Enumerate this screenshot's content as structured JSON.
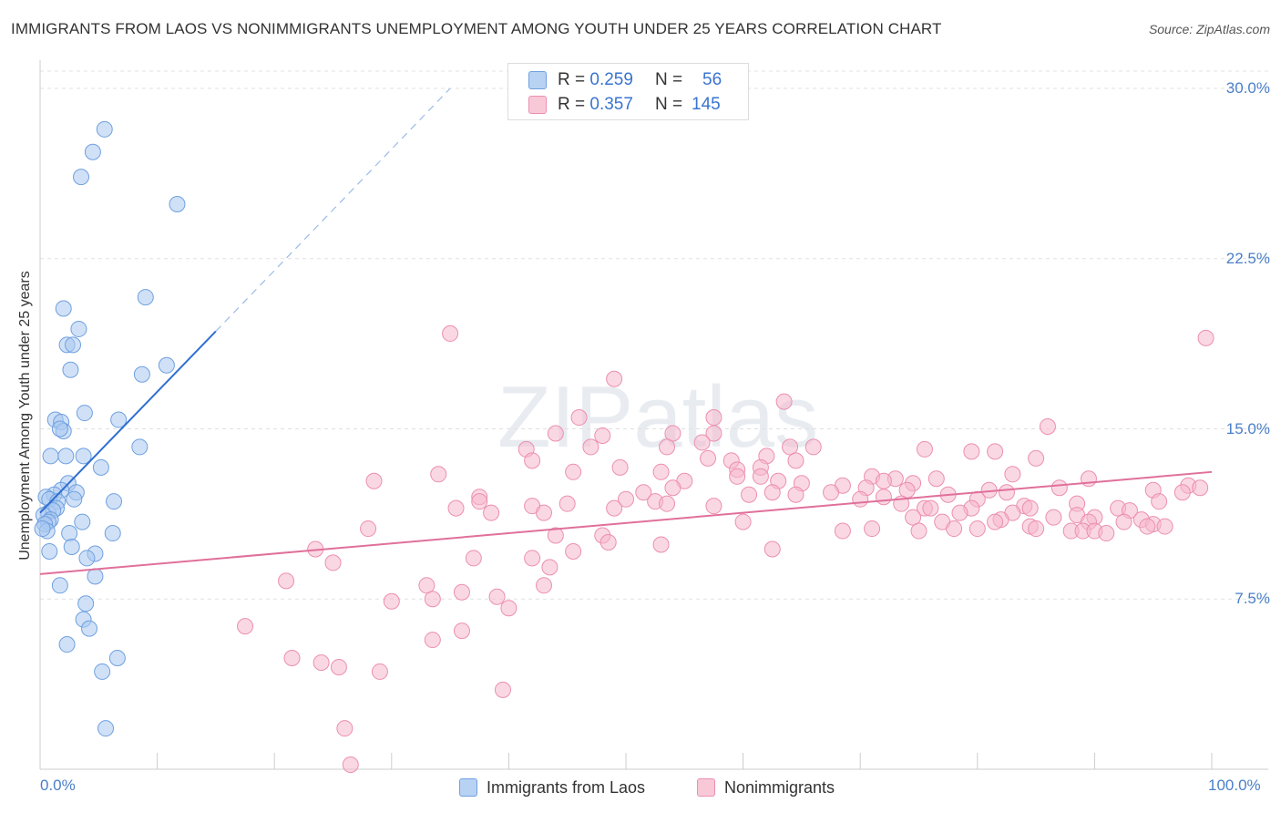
{
  "title": "IMMIGRANTS FROM LAOS VS NONIMMIGRANTS UNEMPLOYMENT AMONG YOUTH UNDER 25 YEARS CORRELATION CHART",
  "source": "Source: ZipAtlas.com",
  "watermark": "ZIPatlas",
  "colors": {
    "blue": "#a9c8f0",
    "blue_stroke": "#6fa0e0",
    "blue_line": "#2f6fd0",
    "pink": "#f5b8cc",
    "pink_stroke": "#ec8fb0",
    "pink_line": "#e0709a",
    "tick_text": "#4a7fc9",
    "grid": "#e0e0e0"
  },
  "legend_top": [
    {
      "r_label": "R =",
      "r_value": "0.259",
      "n_label": "N =",
      "n_value": "56"
    },
    {
      "r_label": "R =",
      "r_value": "0.357",
      "n_label": "N =",
      "n_value": "145"
    }
  ],
  "chart_data": {
    "type": "scatter",
    "title": "IMMIGRANTS FROM LAOS VS NONIMMIGRANTS UNEMPLOYMENT AMONG YOUTH UNDER 25 YEARS CORRELATION CHART",
    "xlabel": "",
    "ylabel": "Unemployment Among Youth under 25 years",
    "xlim": [
      0,
      100
    ],
    "ylim": [
      0,
      30
    ],
    "x_tick_labels": [
      "0.0%",
      "100.0%"
    ],
    "y_ticks": [
      7.5,
      15.0,
      22.5,
      30.0
    ],
    "y_tick_labels": [
      "7.5%",
      "15.0%",
      "22.5%",
      "30.0%"
    ],
    "grid": true,
    "legend_position": "bottom",
    "series": [
      {
        "name": "Immigrants from Laos",
        "r": 0.259,
        "n": 56,
        "trend": {
          "x0": 0,
          "y0": 11.3,
          "x1": 15,
          "y1": 19.3,
          "dashed_to": {
            "x": 35,
            "y": 30
          }
        },
        "points": [
          [
            5.5,
            28.2
          ],
          [
            4.5,
            27.2
          ],
          [
            3.5,
            26.1
          ],
          [
            11.7,
            24.9
          ],
          [
            9,
            20.8
          ],
          [
            2,
            20.3
          ],
          [
            3.3,
            19.4
          ],
          [
            2.3,
            18.7
          ],
          [
            2.8,
            18.7
          ],
          [
            10.8,
            17.8
          ],
          [
            8.7,
            17.4
          ],
          [
            2.6,
            17.6
          ],
          [
            3.8,
            15.7
          ],
          [
            6.7,
            15.4
          ],
          [
            1.3,
            15.4
          ],
          [
            1.8,
            15.3
          ],
          [
            2,
            14.9
          ],
          [
            1.7,
            15
          ],
          [
            8.5,
            14.2
          ],
          [
            2.2,
            13.8
          ],
          [
            0.9,
            13.8
          ],
          [
            3.7,
            13.8
          ],
          [
            5.2,
            13.3
          ],
          [
            2.4,
            12.6
          ],
          [
            1.8,
            12.3
          ],
          [
            1.2,
            12.1
          ],
          [
            3.1,
            12.2
          ],
          [
            2.9,
            11.9
          ],
          [
            0.5,
            12
          ],
          [
            0.8,
            11.9
          ],
          [
            1.5,
            11.8
          ],
          [
            6.3,
            11.8
          ],
          [
            0.7,
            11.3
          ],
          [
            1.4,
            11.5
          ],
          [
            1.1,
            11.4
          ],
          [
            0.3,
            11.2
          ],
          [
            0.9,
            11
          ],
          [
            0.7,
            10.9
          ],
          [
            0.4,
            10.8
          ],
          [
            3.6,
            10.9
          ],
          [
            0.6,
            10.5
          ],
          [
            0.2,
            10.6
          ],
          [
            2.5,
            10.4
          ],
          [
            6.2,
            10.4
          ],
          [
            2.7,
            9.8
          ],
          [
            0.8,
            9.6
          ],
          [
            4.7,
            9.5
          ],
          [
            4,
            9.3
          ],
          [
            4.7,
            8.5
          ],
          [
            1.7,
            8.1
          ],
          [
            3.9,
            7.3
          ],
          [
            3.7,
            6.6
          ],
          [
            4.2,
            6.2
          ],
          [
            2.3,
            5.5
          ],
          [
            6.6,
            4.9
          ],
          [
            5.3,
            4.3
          ],
          [
            5.6,
            1.8
          ]
        ]
      },
      {
        "name": "Nonimmigrants",
        "r": 0.357,
        "n": 145,
        "trend": {
          "x0": 0,
          "y0": 8.6,
          "x1": 100,
          "y1": 13.1
        },
        "points": [
          [
            35,
            19.2
          ],
          [
            99.5,
            19
          ],
          [
            49,
            17.2
          ],
          [
            63.5,
            16.2
          ],
          [
            46,
            15.5
          ],
          [
            57.5,
            15.5
          ],
          [
            86,
            15.1
          ],
          [
            54,
            14.8
          ],
          [
            57.5,
            14.8
          ],
          [
            44,
            14.8
          ],
          [
            48,
            14.7
          ],
          [
            56.5,
            14.4
          ],
          [
            53.5,
            14.2
          ],
          [
            47,
            14.2
          ],
          [
            66,
            14.2
          ],
          [
            64,
            14.2
          ],
          [
            41.5,
            14.1
          ],
          [
            75.5,
            14.1
          ],
          [
            81.5,
            14
          ],
          [
            79.5,
            14
          ],
          [
            85,
            13.7
          ],
          [
            62,
            13.8
          ],
          [
            42,
            13.6
          ],
          [
            57,
            13.7
          ],
          [
            59,
            13.6
          ],
          [
            64.5,
            13.6
          ],
          [
            61.5,
            13.3
          ],
          [
            49.5,
            13.3
          ],
          [
            59.5,
            13.2
          ],
          [
            53,
            13.1
          ],
          [
            45.5,
            13.1
          ],
          [
            83,
            13
          ],
          [
            34,
            13
          ],
          [
            59.5,
            12.9
          ],
          [
            71,
            12.9
          ],
          [
            61.5,
            12.9
          ],
          [
            76.5,
            12.8
          ],
          [
            73,
            12.8
          ],
          [
            89.5,
            12.8
          ],
          [
            28.5,
            12.7
          ],
          [
            55,
            12.7
          ],
          [
            63,
            12.7
          ],
          [
            72,
            12.7
          ],
          [
            74.5,
            12.6
          ],
          [
            65,
            12.6
          ],
          [
            68.5,
            12.5
          ],
          [
            98,
            12.5
          ],
          [
            99,
            12.4
          ],
          [
            87,
            12.4
          ],
          [
            54,
            12.4
          ],
          [
            70.5,
            12.4
          ],
          [
            95,
            12.3
          ],
          [
            81,
            12.3
          ],
          [
            74,
            12.3
          ],
          [
            67.5,
            12.2
          ],
          [
            62.5,
            12.2
          ],
          [
            51.5,
            12.2
          ],
          [
            82.5,
            12.2
          ],
          [
            97.5,
            12.2
          ],
          [
            77.5,
            12.1
          ],
          [
            72,
            12
          ],
          [
            64.5,
            12.1
          ],
          [
            60.5,
            12.1
          ],
          [
            70,
            11.9
          ],
          [
            37.5,
            12
          ],
          [
            50,
            11.9
          ],
          [
            80,
            11.9
          ],
          [
            95.5,
            11.8
          ],
          [
            52.5,
            11.8
          ],
          [
            53.5,
            11.7
          ],
          [
            73.5,
            11.7
          ],
          [
            37.5,
            11.8
          ],
          [
            42,
            11.6
          ],
          [
            45,
            11.7
          ],
          [
            57.5,
            11.6
          ],
          [
            49,
            11.5
          ],
          [
            88.5,
            11.7
          ],
          [
            84,
            11.6
          ],
          [
            75.5,
            11.5
          ],
          [
            76,
            11.5
          ],
          [
            79.5,
            11.5
          ],
          [
            84.5,
            11.5
          ],
          [
            92,
            11.5
          ],
          [
            93,
            11.4
          ],
          [
            35.5,
            11.5
          ],
          [
            38.5,
            11.3
          ],
          [
            43,
            11.3
          ],
          [
            78.5,
            11.3
          ],
          [
            83,
            11.3
          ],
          [
            88.5,
            11.2
          ],
          [
            90,
            11.1
          ],
          [
            74.5,
            11.1
          ],
          [
            86.5,
            11.1
          ],
          [
            82,
            11
          ],
          [
            94,
            11
          ],
          [
            77,
            10.9
          ],
          [
            81.5,
            10.9
          ],
          [
            89.5,
            10.9
          ],
          [
            92.5,
            10.9
          ],
          [
            95,
            10.8
          ],
          [
            94.5,
            10.7
          ],
          [
            84.5,
            10.7
          ],
          [
            60,
            10.9
          ],
          [
            71,
            10.6
          ],
          [
            85,
            10.6
          ],
          [
            88,
            10.5
          ],
          [
            89,
            10.5
          ],
          [
            96,
            10.7
          ],
          [
            28,
            10.6
          ],
          [
            78,
            10.6
          ],
          [
            75,
            10.5
          ],
          [
            90,
            10.5
          ],
          [
            80,
            10.6
          ],
          [
            91,
            10.4
          ],
          [
            48,
            10.3
          ],
          [
            44,
            10.3
          ],
          [
            68.5,
            10.5
          ],
          [
            48.5,
            10
          ],
          [
            53,
            9.9
          ],
          [
            23.5,
            9.7
          ],
          [
            62.5,
            9.7
          ],
          [
            45.5,
            9.6
          ],
          [
            37,
            9.3
          ],
          [
            42,
            9.3
          ],
          [
            25,
            9.1
          ],
          [
            43.5,
            8.9
          ],
          [
            33,
            8.1
          ],
          [
            43,
            8.1
          ],
          [
            21,
            8.3
          ],
          [
            36,
            7.8
          ],
          [
            39,
            7.6
          ],
          [
            33.5,
            7.5
          ],
          [
            30,
            7.4
          ],
          [
            40,
            7.1
          ],
          [
            17.5,
            6.3
          ],
          [
            36,
            6.1
          ],
          [
            33.5,
            5.7
          ],
          [
            21.5,
            4.9
          ],
          [
            24,
            4.7
          ],
          [
            25.5,
            4.5
          ],
          [
            29,
            4.3
          ],
          [
            39.5,
            3.5
          ],
          [
            26,
            1.8
          ],
          [
            26.5,
            0.2
          ]
        ]
      }
    ]
  },
  "legend_bottom": [
    "Immigrants from Laos",
    "Nonimmigrants"
  ]
}
